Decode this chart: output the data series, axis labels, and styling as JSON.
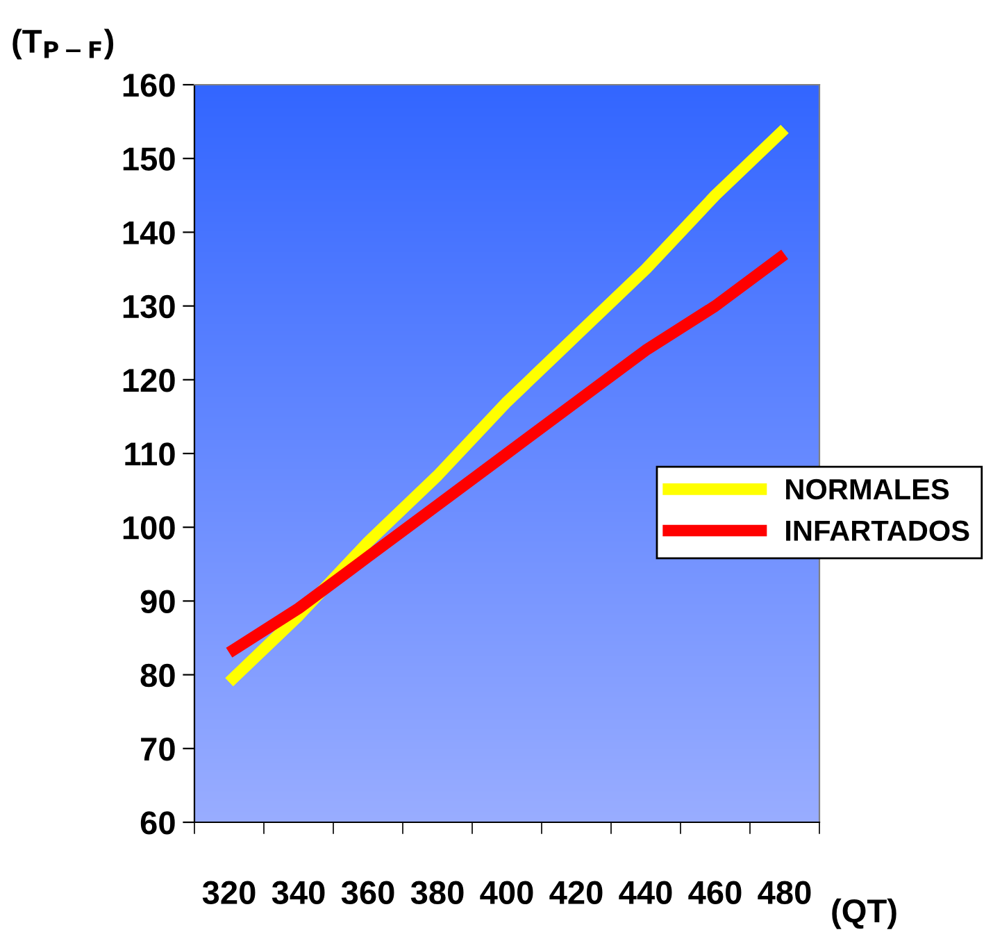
{
  "chart_data": {
    "type": "line",
    "ylabel": "(T$_{P−F}$)",
    "xlabel": "(QT)",
    "categories": [
      "320",
      "340",
      "360",
      "380",
      "400",
      "420",
      "440",
      "460",
      "480"
    ],
    "series": [
      {
        "name": "NORMALES",
        "color": "#ffff00",
        "values": [
          79,
          88,
          98,
          107,
          117,
          126,
          135,
          145,
          154
        ]
      },
      {
        "name": "INFARTADOS",
        "color": "#ff0000",
        "values": [
          83,
          89,
          96,
          103,
          110,
          117,
          124,
          130,
          137
        ]
      }
    ],
    "ylim": [
      60,
      160
    ],
    "yticks": [
      60,
      70,
      80,
      90,
      100,
      110,
      120,
      130,
      140,
      150,
      160
    ],
    "grid": false,
    "legend": "right",
    "marker": "none",
    "line_style": "solid"
  }
}
